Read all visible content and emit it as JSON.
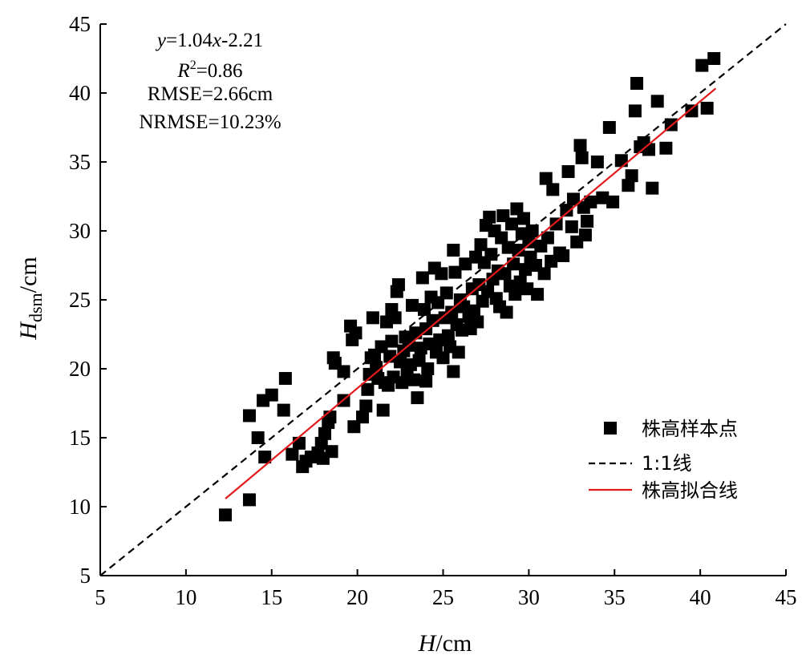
{
  "chart_data": {
    "type": "scatter",
    "title": "",
    "xlabel": {
      "main": "H",
      "unit": "/cm"
    },
    "ylabel": {
      "main": "H",
      "sub": "dsm",
      "unit": "/cm"
    },
    "xlim": [
      5,
      45
    ],
    "ylim": [
      5,
      45
    ],
    "xticks": [
      "5",
      "10",
      "15",
      "20",
      "25",
      "30",
      "35",
      "40",
      "45"
    ],
    "yticks": [
      "5",
      "10",
      "15",
      "20",
      "25",
      "30",
      "35",
      "40",
      "45"
    ],
    "grid": false,
    "legend_position": "bottom-right",
    "annotations": {
      "equation": {
        "y": "y",
        "body": "=1.04",
        "x": "x",
        "tail": "-2.21"
      },
      "r2": {
        "r": "R",
        "sup": "2",
        "tail": "=0.86"
      },
      "rmse": "RMSE=2.66cm",
      "nrmse": "NRMSE=10.23%"
    },
    "series": [
      {
        "name": "株高样本点",
        "kind": "scatter",
        "color": "#000000",
        "marker": "square",
        "points": [
          [
            12.3,
            9.4
          ],
          [
            13.7,
            10.5
          ],
          [
            13.7,
            16.6
          ],
          [
            14.2,
            15.0
          ],
          [
            14.6,
            13.6
          ],
          [
            14.5,
            17.7
          ],
          [
            15.0,
            18.1
          ],
          [
            15.7,
            17.0
          ],
          [
            15.8,
            19.3
          ],
          [
            16.2,
            13.8
          ],
          [
            16.6,
            14.6
          ],
          [
            16.8,
            12.9
          ],
          [
            17.0,
            13.3
          ],
          [
            17.3,
            13.6
          ],
          [
            17.7,
            13.9
          ],
          [
            17.9,
            14.6
          ],
          [
            18.0,
            13.5
          ],
          [
            18.1,
            15.3
          ],
          [
            18.3,
            16.1
          ],
          [
            18.4,
            16.5
          ],
          [
            18.5,
            14.0
          ],
          [
            18.6,
            20.8
          ],
          [
            18.7,
            20.4
          ],
          [
            19.2,
            19.8
          ],
          [
            19.2,
            17.7
          ],
          [
            19.6,
            23.1
          ],
          [
            19.7,
            22.1
          ],
          [
            19.8,
            15.8
          ],
          [
            19.9,
            22.6
          ],
          [
            20.3,
            16.5
          ],
          [
            20.5,
            17.3
          ],
          [
            20.6,
            18.5
          ],
          [
            20.7,
            19.6
          ],
          [
            20.9,
            23.7
          ],
          [
            20.8,
            20.8
          ],
          [
            21.0,
            21.0
          ],
          [
            21.1,
            20.1
          ],
          [
            21.2,
            19.3
          ],
          [
            21.4,
            21.6
          ],
          [
            21.5,
            17.0
          ],
          [
            21.6,
            19.0
          ],
          [
            21.7,
            23.4
          ],
          [
            21.8,
            18.8
          ],
          [
            21.9,
            20.9
          ],
          [
            22.0,
            24.3
          ],
          [
            22.0,
            22.0
          ],
          [
            22.1,
            19.4
          ],
          [
            22.2,
            23.7
          ],
          [
            22.3,
            25.6
          ],
          [
            22.4,
            26.1
          ],
          [
            22.5,
            20.5
          ],
          [
            22.6,
            19.0
          ],
          [
            22.7,
            21.3
          ],
          [
            22.8,
            22.3
          ],
          [
            22.9,
            19.7
          ],
          [
            23.0,
            21.7
          ],
          [
            23.1,
            20.3
          ],
          [
            23.2,
            24.6
          ],
          [
            23.3,
            19.2
          ],
          [
            23.4,
            22.6
          ],
          [
            23.5,
            17.9
          ],
          [
            23.6,
            20.6
          ],
          [
            23.7,
            21.5
          ],
          [
            23.8,
            26.6
          ],
          [
            23.9,
            24.3
          ],
          [
            24.0,
            19.1
          ],
          [
            24.0,
            22.9
          ],
          [
            24.1,
            20.0
          ],
          [
            24.2,
            21.8
          ],
          [
            24.3,
            25.2
          ],
          [
            24.4,
            23.5
          ],
          [
            24.5,
            27.3
          ],
          [
            24.6,
            21.2
          ],
          [
            24.7,
            24.8
          ],
          [
            24.8,
            22.1
          ],
          [
            24.9,
            26.9
          ],
          [
            25.0,
            20.8
          ],
          [
            25.1,
            23.7
          ],
          [
            25.2,
            25.5
          ],
          [
            25.3,
            22.4
          ],
          [
            25.4,
            21.6
          ],
          [
            25.5,
            24.1
          ],
          [
            25.6,
            19.8
          ],
          [
            25.6,
            28.6
          ],
          [
            25.7,
            27.0
          ],
          [
            25.8,
            23.2
          ],
          [
            25.9,
            21.2
          ],
          [
            26.0,
            25.0
          ],
          [
            26.1,
            22.8
          ],
          [
            26.2,
            24.5
          ],
          [
            26.3,
            27.6
          ],
          [
            26.5,
            23.8
          ],
          [
            26.6,
            22.9
          ],
          [
            26.7,
            25.8
          ],
          [
            26.8,
            24.2
          ],
          [
            26.9,
            28.1
          ],
          [
            27.0,
            23.4
          ],
          [
            27.1,
            26.1
          ],
          [
            27.2,
            29.0
          ],
          [
            27.3,
            24.9
          ],
          [
            27.4,
            27.7
          ],
          [
            27.5,
            30.4
          ],
          [
            27.6,
            25.6
          ],
          [
            27.7,
            31.0
          ],
          [
            27.8,
            28.3
          ],
          [
            27.9,
            26.5
          ],
          [
            28.0,
            30.0
          ],
          [
            28.1,
            25.1
          ],
          [
            28.2,
            27.1
          ],
          [
            28.3,
            24.5
          ],
          [
            28.4,
            29.5
          ],
          [
            28.5,
            31.1
          ],
          [
            28.6,
            26.9
          ],
          [
            28.7,
            24.1
          ],
          [
            28.8,
            28.8
          ],
          [
            28.9,
            26.0
          ],
          [
            29.0,
            30.5
          ],
          [
            29.1,
            27.6
          ],
          [
            29.2,
            25.4
          ],
          [
            29.3,
            31.6
          ],
          [
            29.4,
            28.6
          ],
          [
            29.5,
            26.3
          ],
          [
            29.6,
            29.8
          ],
          [
            29.7,
            30.9
          ],
          [
            29.8,
            27.2
          ],
          [
            29.9,
            25.8
          ],
          [
            30.0,
            29.2
          ],
          [
            30.1,
            28.1
          ],
          [
            30.2,
            30.0
          ],
          [
            30.4,
            27.5
          ],
          [
            30.5,
            25.4
          ],
          [
            30.7,
            28.9
          ],
          [
            30.9,
            26.9
          ],
          [
            31.0,
            33.8
          ],
          [
            31.1,
            29.5
          ],
          [
            31.3,
            27.8
          ],
          [
            31.4,
            33.0
          ],
          [
            31.6,
            30.5
          ],
          [
            31.8,
            28.4
          ],
          [
            32.0,
            28.2
          ],
          [
            32.2,
            31.5
          ],
          [
            32.3,
            34.3
          ],
          [
            32.5,
            30.3
          ],
          [
            32.6,
            32.3
          ],
          [
            32.8,
            29.2
          ],
          [
            33.0,
            36.2
          ],
          [
            33.1,
            35.3
          ],
          [
            33.2,
            31.7
          ],
          [
            33.3,
            29.7
          ],
          [
            33.4,
            30.7
          ],
          [
            33.6,
            32.1
          ],
          [
            34.0,
            35.0
          ],
          [
            34.3,
            32.4
          ],
          [
            34.7,
            37.5
          ],
          [
            34.9,
            32.1
          ],
          [
            35.4,
            35.1
          ],
          [
            35.8,
            33.3
          ],
          [
            36.0,
            34.0
          ],
          [
            36.2,
            38.7
          ],
          [
            36.3,
            40.7
          ],
          [
            36.5,
            36.1
          ],
          [
            36.7,
            36.4
          ],
          [
            37.0,
            35.9
          ],
          [
            37.2,
            33.1
          ],
          [
            37.5,
            39.4
          ],
          [
            38.0,
            36.0
          ],
          [
            38.3,
            37.7
          ],
          [
            39.5,
            38.7
          ],
          [
            40.1,
            42.0
          ],
          [
            40.4,
            38.9
          ],
          [
            40.8,
            42.5
          ]
        ]
      },
      {
        "name": "1:1线",
        "kind": "line",
        "color": "#000000",
        "dash": "dashed",
        "x": [
          5,
          45
        ],
        "y": [
          5,
          45
        ]
      },
      {
        "name": "株高拟合线",
        "kind": "line",
        "color": "#e31a1c",
        "x": [
          12.3,
          40.9
        ],
        "y": [
          10.58,
          40.33
        ]
      }
    ]
  }
}
